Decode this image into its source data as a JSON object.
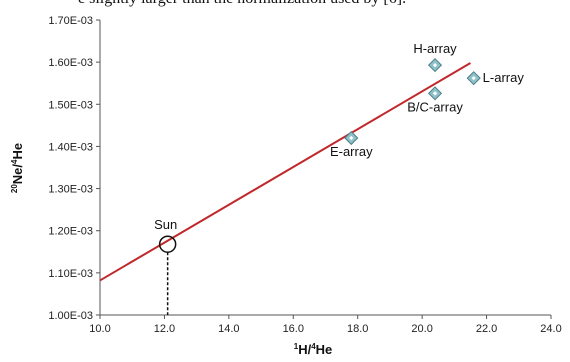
{
  "header_fragment": "e slightly larger than the normalization used by [6].",
  "chart_data": {
    "type": "scatter",
    "xlabel_sup": "1",
    "xlabel_main": "H/",
    "xlabel_sup2": "4",
    "xlabel_end": "He",
    "ylabel_sup": "20",
    "ylabel_main": "Ne/",
    "ylabel_sup2": "4",
    "ylabel_end": "He",
    "xlim": [
      10.0,
      24.0
    ],
    "ylim": [
      0.001,
      0.0017
    ],
    "x_ticks": [
      "10.0",
      "12.0",
      "14.0",
      "16.0",
      "18.0",
      "20.0",
      "22.0",
      "24.0"
    ],
    "y_ticks": [
      "1.00E-03",
      "1.10E-03",
      "1.20E-03",
      "1.30E-03",
      "1.40E-03",
      "1.50E-03",
      "1.60E-03",
      "1.70E-03"
    ],
    "points": [
      {
        "label": "H-array",
        "x": 20.4,
        "y": 0.001593
      },
      {
        "label": "L-array",
        "x": 21.6,
        "y": 0.001562
      },
      {
        "label": "B/C-array",
        "x": 20.4,
        "y": 0.001526
      },
      {
        "label": "E-array",
        "x": 17.8,
        "y": 0.00142
      }
    ],
    "sun": {
      "label": "Sun",
      "x": 12.1,
      "y": 0.001168
    },
    "fit_line": {
      "x": [
        10.0,
        21.5
      ],
      "y": [
        0.001082,
        0.001598
      ],
      "color": "#c0282b"
    },
    "marker_color": "#8fc1c9",
    "marker_edge": "#4d7f88",
    "grid": false
  }
}
